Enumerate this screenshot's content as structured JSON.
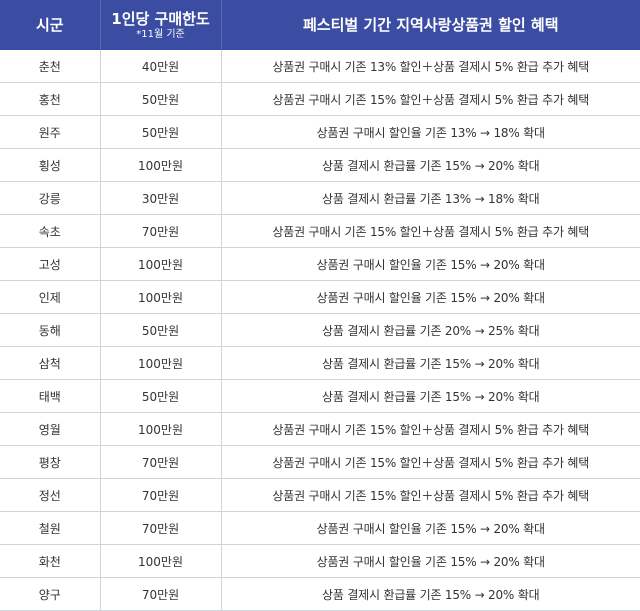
{
  "header": {
    "region": "시군",
    "limit": "1인당 구매한도",
    "limit_note": "*11월 기준",
    "benefit": "페스티벌 기간 지역사랑상품권 할인 혜택"
  },
  "rows": [
    {
      "region": "춘천",
      "limit": "40만원",
      "benefit": "상품권 구매시 기존 13% 할인＋상품 결제시 5% 환급 추가 혜택"
    },
    {
      "region": "홍천",
      "limit": "50만원",
      "benefit": "상품권 구매시 기존 15% 할인＋상품 결제시 5% 환급 추가 혜택"
    },
    {
      "region": "원주",
      "limit": "50만원",
      "benefit": "상품권 구매시 할인율 기존 13% → 18% 확대"
    },
    {
      "region": "횡성",
      "limit": "100만원",
      "benefit": "상품 결제시 환급률 기존 15% → 20% 확대"
    },
    {
      "region": "강릉",
      "limit": "30만원",
      "benefit": "상품 결제시 환급률 기존 13% → 18% 확대"
    },
    {
      "region": "속초",
      "limit": "70만원",
      "benefit": "상품권 구매시 기존 15% 할인＋상품 결제시 5% 환급 추가 혜택"
    },
    {
      "region": "고성",
      "limit": "100만원",
      "benefit": "상품권 구매시 할인율 기존 15% → 20% 확대"
    },
    {
      "region": "인제",
      "limit": "100만원",
      "benefit": "상품권 구매시 할인율 기존 15% → 20% 확대"
    },
    {
      "region": "동해",
      "limit": "50만원",
      "benefit": "상품 결제시 환급률 기존 20% → 25% 확대"
    },
    {
      "region": "삼척",
      "limit": "100만원",
      "benefit": "상품 결제시 환급률 기존 15% → 20% 확대"
    },
    {
      "region": "태백",
      "limit": "50만원",
      "benefit": "상품 결제시 환급률 기존 15% → 20% 확대"
    },
    {
      "region": "영월",
      "limit": "100만원",
      "benefit": "상품권 구매시 기존 15% 할인＋상품 결제시 5% 환급 추가 혜택"
    },
    {
      "region": "평창",
      "limit": "70만원",
      "benefit": "상품권 구매시 기존 15% 할인＋상품 결제시 5% 환급 추가 혜택"
    },
    {
      "region": "정선",
      "limit": "70만원",
      "benefit": "상품권 구매시 기존 15% 할인＋상품 결제시 5% 환급 추가 혜택"
    },
    {
      "region": "철원",
      "limit": "70만원",
      "benefit": "상품권 구매시 할인율 기존 15% → 20% 확대"
    },
    {
      "region": "화천",
      "limit": "100만원",
      "benefit": "상품권 구매시 할인율 기존 15% → 20% 확대"
    },
    {
      "region": "양구",
      "limit": "70만원",
      "benefit": "상품 결제시 환급률 기존 15% → 20% 확대"
    }
  ]
}
